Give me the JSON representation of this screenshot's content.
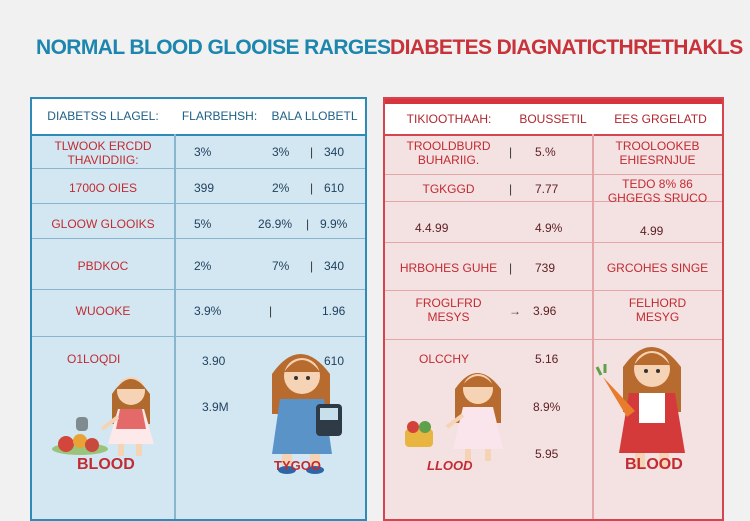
{
  "titles": {
    "left": "NORMAL BLOOD GLOOISE RARGES",
    "right": "DIABETES DIAGNATICTHRETHAKLS"
  },
  "left_table": {
    "headers": [
      "DIABETSS  LLAGEL:",
      "FLARBEHSH:",
      "BALA LLOBETL"
    ],
    "rows": [
      {
        "label": "TLWOOK ERCDD\nTHAVIDDIIG:",
        "c1": "3%",
        "c2": "3%",
        "c3": "340"
      },
      {
        "label": "1700O OIES",
        "c1": "399",
        "c2": "2%",
        "c3": "610"
      },
      {
        "label": "GLOOW GLOOIKS",
        "c1": "5%",
        "c2": "26.9%",
        "c3": "9.9%"
      },
      {
        "label": "PBDKOC",
        "c1": "2%",
        "c2": "7%",
        "c3": "340"
      },
      {
        "label": "WUOOKE",
        "c1": "3.9%",
        "c2": "1.96",
        "c3": ""
      },
      {
        "label": "O1LOQDI",
        "c1": "3.90",
        "c2": "610",
        "c3": ""
      },
      {
        "label": "",
        "c1": "3.9M",
        "c2": "",
        "c3": ""
      }
    ],
    "bottom_left": "BLOOD",
    "bottom_right": "TYGOO"
  },
  "right_table": {
    "headers": [
      "TIKIOOTHAAH:",
      "BOUSSETIL",
      "EES GRGELATD"
    ],
    "rows": [
      {
        "label": "TROOLDBURD\nBUHARIIG.",
        "c1": "5.%",
        "c2": "TROOLOOKEB\nEHIESRNJUE"
      },
      {
        "label": "TGKGGD",
        "c1": "7.77",
        "c2": "TEDO 8% 86\nGHGEGS SRUCO"
      },
      {
        "label": "4.4.99",
        "c1": "4.9%",
        "c2": "4.99"
      },
      {
        "label": "HRBOHES GUHE",
        "c1": "739",
        "c2": "GRCOHES SINGE"
      },
      {
        "label": "FROGLFRD\nMESYS",
        "c1": "3.96",
        "c2": "FELHORD\nMESYG"
      },
      {
        "label": "OLCCHY",
        "c1": "5.16",
        "c2": ""
      },
      {
        "label": "",
        "c1": "8.9%",
        "c2": ""
      },
      {
        "label": "",
        "c1": "5.95",
        "c2": ""
      }
    ],
    "bottom_left": "LLOOD",
    "bottom_right": "BLOOD"
  },
  "icons": [
    "girl-with-fruit-icon",
    "girl-with-glucometer-icon",
    "girl-with-vegetables-icon",
    "girl-with-carrot-icon"
  ],
  "colors": {
    "blue": "#2f8ab8",
    "red": "#d5454f",
    "label_red": "#c22b32"
  }
}
